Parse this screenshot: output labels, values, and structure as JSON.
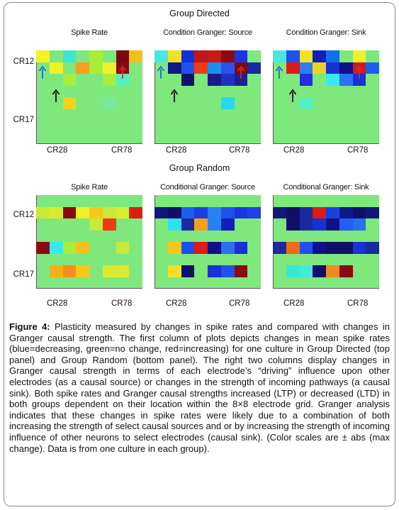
{
  "panels": [
    {
      "title": "Group Directed",
      "subplots": [
        {
          "title": "Spike Rate",
          "cells": [
            [
              0,
              0,
              "#f2f224"
            ],
            [
              0,
              2,
              "#3fe6d8"
            ],
            [
              0,
              4,
              "#a6ee3a"
            ],
            [
              0,
              6,
              "#7a0a10"
            ],
            [
              0,
              7,
              "#f2c01a"
            ],
            [
              1,
              1,
              "#eef02a"
            ],
            [
              1,
              3,
              "#f5a020"
            ],
            [
              1,
              4,
              "#a6ee3a"
            ],
            [
              1,
              5,
              "#eef02a"
            ],
            [
              1,
              6,
              "#8a0a12"
            ],
            [
              2,
              2,
              "#a6ee3a"
            ],
            [
              2,
              5,
              "#a6ee3a"
            ],
            [
              2,
              6,
              "#52f0c0"
            ],
            [
              4,
              2,
              "#f0d220"
            ],
            [
              4,
              5,
              "#78e8a0"
            ]
          ],
          "arrows": [
            {
              "color": "#1a6ee0",
              "col": 0,
              "row": 2
            },
            {
              "color": "#e02a1a",
              "col": 6,
              "row": 2
            },
            {
              "color": "#111111",
              "col": 1,
              "row": 4
            }
          ]
        },
        {
          "title": "Condition Granger: Source",
          "cells": [
            [
              0,
              0,
              "#48e8e0"
            ],
            [
              0,
              1,
              "#f0e028"
            ],
            [
              0,
              2,
              "#1030d8"
            ],
            [
              0,
              3,
              "#c01818"
            ],
            [
              0,
              4,
              "#c81818"
            ],
            [
              0,
              5,
              "#8a0a10"
            ],
            [
              0,
              6,
              "#1a36e0"
            ],
            [
              1,
              1,
              "#10188a"
            ],
            [
              1,
              2,
              "#2050f0"
            ],
            [
              1,
              3,
              "#f03a18"
            ],
            [
              1,
              4,
              "#1a90f0"
            ],
            [
              1,
              5,
              "#2a50f0"
            ],
            [
              1,
              6,
              "#7a0a10"
            ],
            [
              1,
              7,
              "#1a2aa0"
            ],
            [
              2,
              2,
              "#10106a"
            ],
            [
              2,
              4,
              "#1a1a8a"
            ],
            [
              2,
              5,
              "#2030c0"
            ],
            [
              2,
              6,
              "#1a2090"
            ],
            [
              4,
              5,
              "#2ad8f0"
            ]
          ],
          "arrows": [
            {
              "color": "#1a6ee0",
              "col": 0,
              "row": 2
            },
            {
              "color": "#e02a1a",
              "col": 6,
              "row": 2
            },
            {
              "color": "#111111",
              "col": 1,
              "row": 4
            }
          ]
        },
        {
          "title": "Condition Granger: Sink",
          "cells": [
            [
              0,
              0,
              "#48e8e0"
            ],
            [
              0,
              1,
              "#2050f0"
            ],
            [
              0,
              2,
              "#f0e028"
            ],
            [
              0,
              3,
              "#1020b8"
            ],
            [
              0,
              4,
              "#1070e8"
            ],
            [
              0,
              6,
              "#eef02a"
            ],
            [
              1,
              1,
              "#e01a14"
            ],
            [
              1,
              2,
              "#2a80f0"
            ],
            [
              1,
              3,
              "#f0d020"
            ],
            [
              1,
              4,
              "#1a30d0"
            ],
            [
              1,
              5,
              "#10108a"
            ],
            [
              1,
              6,
              "#d01a18"
            ],
            [
              1,
              7,
              "#1a60f0"
            ],
            [
              2,
              2,
              "#2030e0"
            ],
            [
              2,
              4,
              "#38e8f0"
            ],
            [
              2,
              5,
              "#2a70f0"
            ],
            [
              2,
              6,
              "#1a30d8"
            ],
            [
              4,
              2,
              "#52f0c0"
            ]
          ],
          "arrows": [
            {
              "color": "#1a6ee0",
              "col": 0,
              "row": 2
            },
            {
              "color": "#e02a1a",
              "col": 6,
              "row": 2
            },
            {
              "color": "#111111",
              "col": 1,
              "row": 4
            }
          ]
        }
      ]
    },
    {
      "title": "Group Random",
      "subplots": [
        {
          "title": "Spike Rate",
          "cells": [
            [
              1,
              0,
              "#c8e83a"
            ],
            [
              1,
              1,
              "#d8ea30"
            ],
            [
              1,
              2,
              "#8a0a10"
            ],
            [
              1,
              3,
              "#eef02a"
            ],
            [
              1,
              4,
              "#f5c81a"
            ],
            [
              1,
              5,
              "#c8e83a"
            ],
            [
              1,
              6,
              "#d8ec30"
            ],
            [
              1,
              7,
              "#d82010"
            ],
            [
              2,
              4,
              "#c8e83a"
            ],
            [
              2,
              5,
              "#f03a14"
            ],
            [
              4,
              0,
              "#8a0a12"
            ],
            [
              4,
              1,
              "#38e8f0"
            ],
            [
              4,
              2,
              "#a6ee3a"
            ],
            [
              4,
              3,
              "#f5c020"
            ],
            [
              4,
              6,
              "#c8e83a"
            ],
            [
              6,
              1,
              "#f5b018"
            ],
            [
              6,
              2,
              "#f59020"
            ],
            [
              6,
              3,
              "#f5c81a"
            ],
            [
              6,
              5,
              "#d8ea30"
            ],
            [
              6,
              6,
              "#d8ea30"
            ]
          ],
          "arrows": []
        },
        {
          "title": "Conditional Granger: Source",
          "cells": [
            [
              1,
              0,
              "#10187a"
            ],
            [
              1,
              1,
              "#10106a"
            ],
            [
              1,
              2,
              "#1a60f0"
            ],
            [
              1,
              3,
              "#1a40e0"
            ],
            [
              1,
              4,
              "#2a80f0"
            ],
            [
              1,
              5,
              "#2050f0"
            ],
            [
              1,
              6,
              "#1a36e0"
            ],
            [
              1,
              7,
              "#2040e8"
            ],
            [
              2,
              1,
              "#30e0f0"
            ],
            [
              2,
              2,
              "#1a2aa0"
            ],
            [
              2,
              3,
              "#f5a020"
            ],
            [
              2,
              4,
              "#2a80f0"
            ],
            [
              2,
              5,
              "#1020b8"
            ],
            [
              4,
              1,
              "#f5c81a"
            ],
            [
              4,
              2,
              "#1a50f0"
            ],
            [
              4,
              3,
              "#e01a14"
            ],
            [
              4,
              4,
              "#10108a"
            ],
            [
              4,
              5,
              "#2a70f0"
            ],
            [
              4,
              6,
              "#1a30d8"
            ],
            [
              6,
              1,
              "#f0e028"
            ],
            [
              6,
              2,
              "#10106a"
            ],
            [
              6,
              4,
              "#1a30d0"
            ],
            [
              6,
              5,
              "#2050f0"
            ],
            [
              6,
              6,
              "#8a0a10"
            ]
          ],
          "arrows": []
        },
        {
          "title": "Conditional Granger: Sink",
          "cells": [
            [
              1,
              0,
              "#10187a"
            ],
            [
              1,
              1,
              "#10106a"
            ],
            [
              1,
              2,
              "#1a2aa0"
            ],
            [
              1,
              3,
              "#e01a14"
            ],
            [
              1,
              4,
              "#1a40e0"
            ],
            [
              1,
              5,
              "#10188a"
            ],
            [
              1,
              6,
              "#10106a"
            ],
            [
              1,
              7,
              "#10187a"
            ],
            [
              2,
              1,
              "#10106a"
            ],
            [
              2,
              2,
              "#1a2aa0"
            ],
            [
              2,
              3,
              "#1a30d0"
            ],
            [
              2,
              4,
              "#10108a"
            ],
            [
              2,
              5,
              "#2060f0"
            ],
            [
              2,
              6,
              "#2a70f0"
            ],
            [
              4,
              0,
              "#1a2aa0"
            ],
            [
              4,
              1,
              "#f06a14"
            ],
            [
              4,
              2,
              "#2050f0"
            ],
            [
              4,
              3,
              "#10108a"
            ],
            [
              4,
              4,
              "#10106a"
            ],
            [
              4,
              5,
              "#10106a"
            ],
            [
              4,
              6,
              "#1a30d8"
            ],
            [
              4,
              7,
              "#1a2aa0"
            ],
            [
              6,
              1,
              "#38e8d8"
            ],
            [
              6,
              2,
              "#48e8e0"
            ],
            [
              6,
              3,
              "#10106a"
            ],
            [
              6,
              4,
              "#f08a20"
            ],
            [
              6,
              5,
              "#8a0a10"
            ]
          ],
          "arrows": []
        }
      ]
    }
  ],
  "labels": {
    "row_top": "CR12",
    "row_bottom": "CR17",
    "col_left": "CR28",
    "col_right": "CR78"
  },
  "caption": {
    "heading": "Figure 4:",
    "text": " Plasticity measured by changes in spike rates and compared with changes in Granger causal strength. The first column of plots depicts changes in mean spike rates (blue=decreasing, green=no change, red=increasing) for one culture in Group Directed (top panel) and Group Random (bottom panel). The right two columns display changes in Granger causal strength in terms of each electrode’s “driving” influence upon other electrodes (as a causal source) or changes in the strength of incoming pathways (a causal sink). Both spike rates and Granger causal strengths increased (LTP) or decreased (LTD) in both groups dependent on their location within the 8×8 electrode grid. Granger analysis indicates that these changes in spike rates were likely due to a combination of both increasing the strength of select causal sources and or by increasing the strength of incoming influence of other neurons to select electrodes (causal sink). (Color scales are ± abs (max change). Data is from one culture in each group)."
  }
}
